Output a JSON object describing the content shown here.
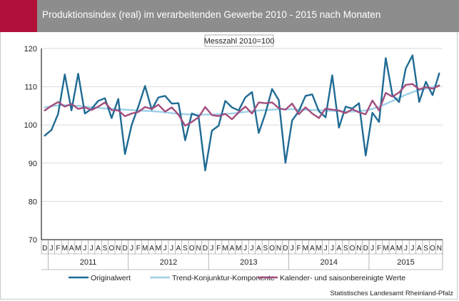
{
  "header": {
    "title": "Produktionsindex (real) im verarbeitenden Gewerbe 2010 - 2015 nach Monaten"
  },
  "source": "Statistisches Landesamt Rheinland-Pfalz",
  "colors": {
    "header": "#8d8d8d",
    "accent": "#b0103a",
    "original": "#1f6b94",
    "trend": "#9ed0e8",
    "seasonal": "#a24d7e",
    "grid": "#d9d9d9"
  },
  "chart_data": {
    "type": "line",
    "subtitle": "Messzahl 2010=100",
    "ylim": [
      70,
      120
    ],
    "yticks": [
      70,
      80,
      90,
      100,
      110,
      120
    ],
    "grid": "horizontal",
    "legend_position": "bottom",
    "month_labels": [
      "D",
      "J",
      "F",
      "M",
      "A",
      "M",
      "J",
      "J",
      "A",
      "S",
      "O",
      "N",
      "D",
      "J",
      "F",
      "M",
      "A",
      "M",
      "J",
      "J",
      "A",
      "S",
      "O",
      "N",
      "D",
      "J",
      "F",
      "M",
      "A",
      "M",
      "J",
      "J",
      "A",
      "S",
      "O",
      "N",
      "D",
      "J",
      "F",
      "M",
      "A",
      "M",
      "J",
      "J",
      "A",
      "S",
      "O",
      "N",
      "D",
      "J",
      "F",
      "M",
      "A",
      "M",
      "J",
      "J",
      "A",
      "S",
      "O",
      "N"
    ],
    "x": [
      "2010-12",
      "2011-01",
      "2011-02",
      "2011-03",
      "2011-04",
      "2011-05",
      "2011-06",
      "2011-07",
      "2011-08",
      "2011-09",
      "2011-10",
      "2011-11",
      "2011-12",
      "2012-01",
      "2012-02",
      "2012-03",
      "2012-04",
      "2012-05",
      "2012-06",
      "2012-07",
      "2012-08",
      "2012-09",
      "2012-10",
      "2012-11",
      "2012-12",
      "2013-01",
      "2013-02",
      "2013-03",
      "2013-04",
      "2013-05",
      "2013-06",
      "2013-07",
      "2013-08",
      "2013-09",
      "2013-10",
      "2013-11",
      "2013-12",
      "2014-01",
      "2014-02",
      "2014-03",
      "2014-04",
      "2014-05",
      "2014-06",
      "2014-07",
      "2014-08",
      "2014-09",
      "2014-10",
      "2014-11",
      "2014-12",
      "2015-01",
      "2015-02",
      "2015-03",
      "2015-04",
      "2015-05",
      "2015-06",
      "2015-07",
      "2015-08",
      "2015-09",
      "2015-10",
      "2015-11"
    ],
    "years": [
      {
        "label": "2011",
        "start": 1,
        "end": 12
      },
      {
        "label": "2012",
        "start": 13,
        "end": 24
      },
      {
        "label": "2013",
        "start": 25,
        "end": 36
      },
      {
        "label": "2014",
        "start": 37,
        "end": 48
      },
      {
        "label": "2015",
        "start": 49,
        "end": 59
      }
    ],
    "series": [
      {
        "name": "Originalwert",
        "color": "#1f6b94",
        "values": [
          97.2,
          98.7,
          102.9,
          113.2,
          103.8,
          113.4,
          103.0,
          104.2,
          106.3,
          107.0,
          101.8,
          106.8,
          92.4,
          100.0,
          104.8,
          110.2,
          104.0,
          107.2,
          107.6,
          105.6,
          105.7,
          96.0,
          103.0,
          102.3,
          88.1,
          98.5,
          99.8,
          106.3,
          104.6,
          103.8,
          107.2,
          108.6,
          97.9,
          103.0,
          109.4,
          106.5,
          90.1,
          101.2,
          103.6,
          107.6,
          108.0,
          103.6,
          102.0,
          113.0,
          99.3,
          104.8,
          104.3,
          105.7,
          92.0,
          103.2,
          100.8,
          117.5,
          107.8,
          106.0,
          114.8,
          118.2,
          106.0,
          111.3,
          107.8,
          113.5
        ]
      },
      {
        "name": "Trend-Konjunktur-Komponente",
        "color": "#9ed0e8",
        "values": [
          104.6,
          104.9,
          105.1,
          105.2,
          105.1,
          105.0,
          104.8,
          104.6,
          104.5,
          104.3,
          104.2,
          104.1,
          104.0,
          103.9,
          103.8,
          103.7,
          103.6,
          103.5,
          103.3,
          103.1,
          102.9,
          102.8,
          102.7,
          102.7,
          102.7,
          102.7,
          102.8,
          102.9,
          103.0,
          103.2,
          103.4,
          103.6,
          103.8,
          103.9,
          104.0,
          104.1,
          104.1,
          104.1,
          104.0,
          104.0,
          103.9,
          103.9,
          103.8,
          103.7,
          103.6,
          103.5,
          103.5,
          103.6,
          103.8,
          104.2,
          104.8,
          105.5,
          106.3,
          107.1,
          107.9,
          108.6,
          109.1,
          109.5,
          109.9,
          110.4
        ]
      },
      {
        "name": "Kalender- und saisonbereinigte Werte",
        "color": "#a24d7e",
        "values": [
          103.8,
          105.0,
          106.0,
          104.8,
          105.5,
          104.2,
          104.6,
          103.9,
          104.8,
          105.9,
          103.9,
          103.8,
          102.3,
          103.0,
          103.4,
          104.7,
          104.2,
          105.3,
          103.5,
          104.6,
          102.7,
          99.8,
          100.8,
          102.0,
          104.7,
          102.6,
          102.3,
          102.9,
          101.5,
          103.3,
          104.8,
          103.0,
          105.9,
          105.7,
          105.9,
          104.4,
          104.0,
          105.6,
          102.8,
          104.6,
          103.0,
          101.8,
          104.3,
          104.0,
          103.8,
          103.1,
          104.1,
          103.3,
          102.8,
          106.4,
          103.8,
          108.4,
          107.4,
          108.5,
          110.5,
          110.7,
          109.3,
          109.9,
          109.5,
          110.3
        ]
      }
    ]
  }
}
